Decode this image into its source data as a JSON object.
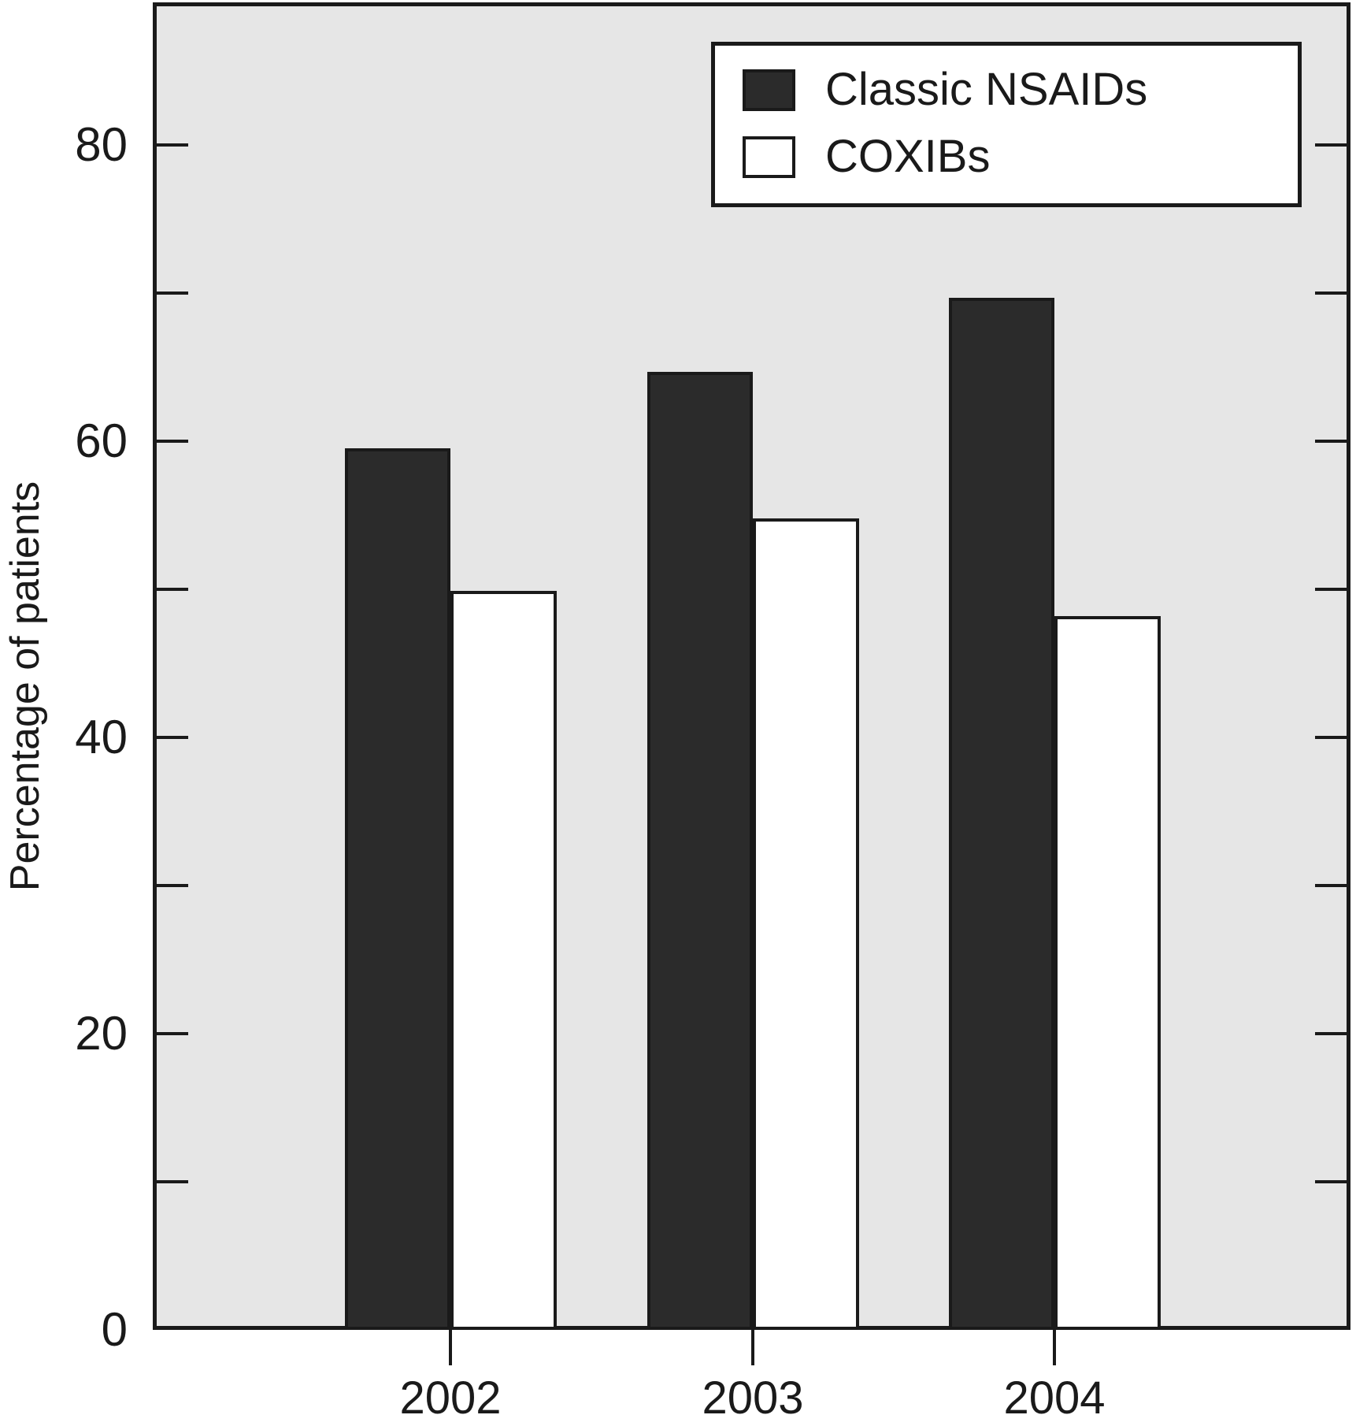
{
  "chart_data": {
    "type": "bar",
    "title": "",
    "categories": [
      "2002",
      "2003",
      "2004"
    ],
    "series": [
      {
        "name": "Classic NSAIDs",
        "values": [
          59.5,
          64.7,
          69.7
        ],
        "fill": "#2b2b2b",
        "swatch": "dark"
      },
      {
        "name": "COXIBs",
        "values": [
          49.9,
          54.8,
          48.2
        ],
        "fill": "#ffffff",
        "swatch": "white"
      }
    ],
    "xlabel": "",
    "ylabel": "Percentage of patients",
    "ylim": [
      0,
      90
    ],
    "yticks_minor": [
      10,
      20,
      30,
      40,
      50,
      60,
      70,
      80
    ],
    "yticks_labeled": [
      0,
      20,
      40,
      60,
      80
    ],
    "grid": false,
    "legend_position": "top-right",
    "colors": {
      "plot_background": "#e6e6e6",
      "axis_and_text": "#1a1a1a",
      "bar_dark": "#2b2b2b",
      "bar_white": "#ffffff"
    }
  }
}
